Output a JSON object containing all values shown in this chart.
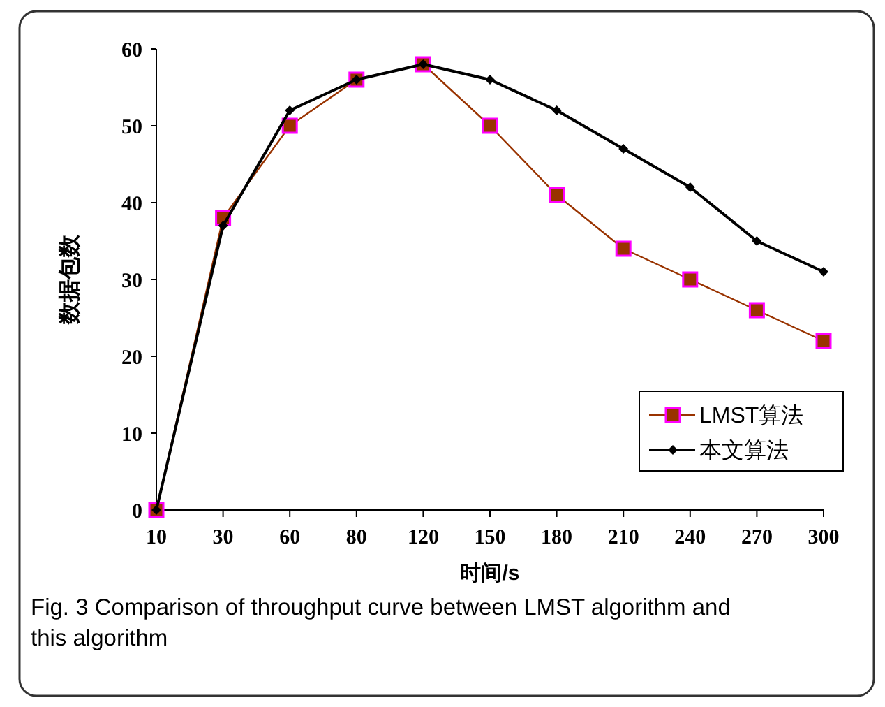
{
  "chart_data": {
    "type": "line",
    "xlabel": "时间/s",
    "ylabel": "数据包数",
    "categories": [
      "10",
      "30",
      "60",
      "80",
      "120",
      "150",
      "180",
      "210",
      "240",
      "270",
      "300"
    ],
    "series": [
      {
        "name": "LMST算法",
        "color": "#993300",
        "marker": "square",
        "values": [
          0,
          38,
          50,
          56,
          58,
          50,
          41,
          34,
          30,
          26,
          22
        ]
      },
      {
        "name": "本文算法",
        "color": "#000000",
        "marker": "diamond",
        "values": [
          0,
          37,
          52,
          56,
          58,
          56,
          52,
          47,
          42,
          35,
          31
        ]
      }
    ],
    "ylim": [
      0,
      60
    ],
    "yticks": [
      0,
      10,
      20,
      30,
      40,
      50,
      60
    ],
    "grid": false,
    "legend": "bottom right",
    "annotations": [
      "Fig. 3 Comparison of throughput curve between LMST algorithm and this algorithm"
    ]
  }
}
